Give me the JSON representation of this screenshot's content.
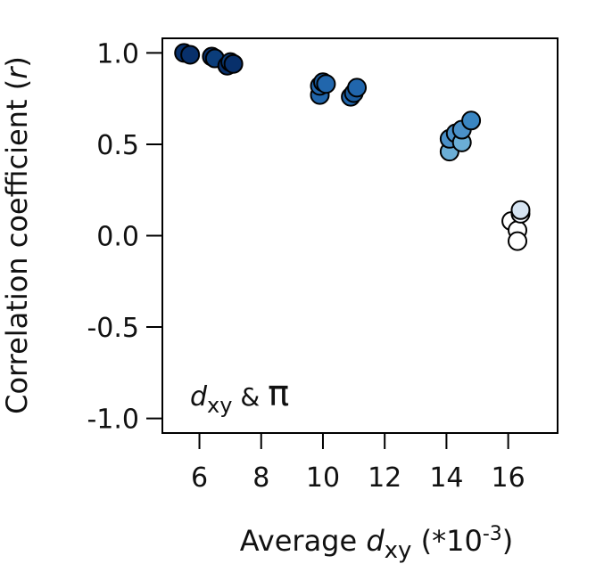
{
  "chart_data": {
    "type": "scatter",
    "xlabel_prefix": "Average ",
    "xlabel_var": "d",
    "xlabel_sub": "xy",
    "xlabel_suffix": " (*10",
    "xlabel_exp": "-3",
    "xlabel_close": ")",
    "ylabel_prefix": "Correlation coefficient (",
    "ylabel_var": "r",
    "ylabel_suffix": ")",
    "annotation_var": "d",
    "annotation_sub": "xy",
    "annotation_amp": " & ",
    "annotation_pi": "π",
    "xlim": [
      4.8,
      17.6
    ],
    "ylim": [
      -1.08,
      1.08
    ],
    "xticks": [
      6,
      8,
      10,
      12,
      14,
      16
    ],
    "xtick_labels": [
      "6",
      "8",
      "10",
      "12",
      "14",
      "16"
    ],
    "yticks": [
      1.0,
      0.5,
      0.0,
      -0.5,
      -1.0
    ],
    "ytick_labels": [
      "1.0",
      "0.5",
      "0.0",
      "-0.5",
      "-1.0"
    ],
    "grid": false,
    "points": [
      {
        "x": 5.5,
        "y": 1.0,
        "color": "#08306b"
      },
      {
        "x": 5.7,
        "y": 0.99,
        "color": "#08306b"
      },
      {
        "x": 6.4,
        "y": 0.98,
        "color": "#08306b"
      },
      {
        "x": 6.5,
        "y": 0.97,
        "color": "#0b3d7a"
      },
      {
        "x": 6.9,
        "y": 0.93,
        "color": "#08306b"
      },
      {
        "x": 7.0,
        "y": 0.95,
        "color": "#0b3d7a"
      },
      {
        "x": 7.1,
        "y": 0.94,
        "color": "#08306b"
      },
      {
        "x": 9.9,
        "y": 0.77,
        "color": "#2166ac"
      },
      {
        "x": 9.9,
        "y": 0.82,
        "color": "#2166ac"
      },
      {
        "x": 10.0,
        "y": 0.84,
        "color": "#1b5c9e"
      },
      {
        "x": 10.1,
        "y": 0.83,
        "color": "#2166ac"
      },
      {
        "x": 10.9,
        "y": 0.76,
        "color": "#2166ac"
      },
      {
        "x": 11.0,
        "y": 0.78,
        "color": "#1b5c9e"
      },
      {
        "x": 11.1,
        "y": 0.81,
        "color": "#2166ac"
      },
      {
        "x": 14.1,
        "y": 0.46,
        "color": "#6baed6"
      },
      {
        "x": 14.1,
        "y": 0.53,
        "color": "#4a90c8"
      },
      {
        "x": 14.3,
        "y": 0.56,
        "color": "#4a90c8"
      },
      {
        "x": 14.5,
        "y": 0.51,
        "color": "#6baed6"
      },
      {
        "x": 14.5,
        "y": 0.58,
        "color": "#4a90c8"
      },
      {
        "x": 14.8,
        "y": 0.63,
        "color": "#3a86c2"
      },
      {
        "x": 16.1,
        "y": 0.08,
        "color": "#ffffff"
      },
      {
        "x": 16.3,
        "y": 0.03,
        "color": "#ffffff"
      },
      {
        "x": 16.3,
        "y": -0.03,
        "color": "#ffffff"
      },
      {
        "x": 16.4,
        "y": 0.12,
        "color": "#f0f4fa"
      },
      {
        "x": 16.4,
        "y": 0.14,
        "color": "#d6e4f2"
      }
    ]
  }
}
